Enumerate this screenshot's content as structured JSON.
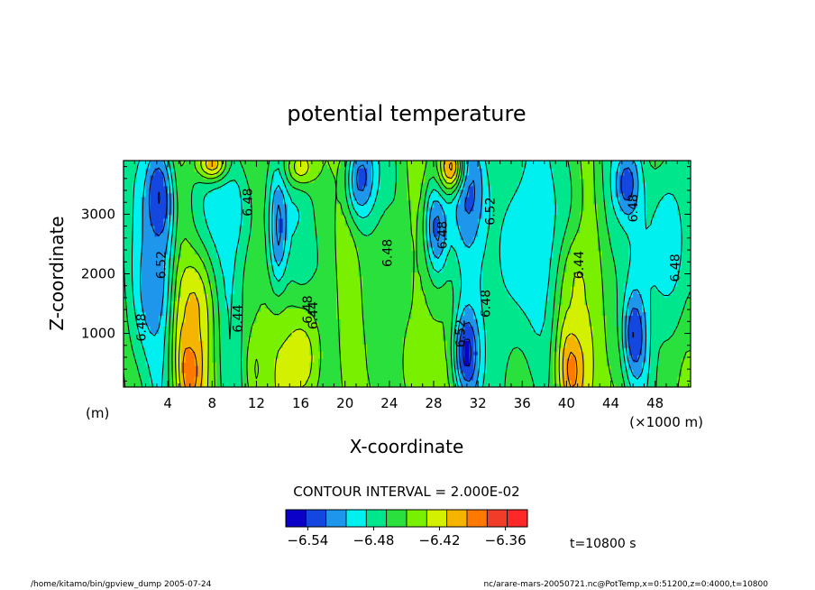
{
  "chart_data": {
    "type": "heatmap",
    "title": "potential temperature",
    "xlabel": "X-coordinate",
    "ylabel": "Z-coordinate",
    "x_unit_left": "(m)",
    "x_unit_right": "(×1000 m)",
    "xlim": [
      0,
      51.2
    ],
    "ylim": [
      100,
      3900
    ],
    "x_ticks": [
      4,
      8,
      12,
      16,
      20,
      24,
      28,
      32,
      36,
      40,
      44,
      48
    ],
    "y_ticks": [
      1000,
      2000,
      3000
    ],
    "contour_interval_text": "CONTOUR INTERVAL = 2.000E-02",
    "colorbar": {
      "range": [
        -6.56,
        -6.34
      ],
      "tick_values": [
        -6.54,
        -6.48,
        -6.42,
        -6.36
      ],
      "tick_labels": [
        "−6.54",
        "−6.48",
        "−6.42",
        "−6.36"
      ],
      "colors": [
        "#0a00c8",
        "#1447e0",
        "#1e96ec",
        "#00f0f0",
        "#00e68c",
        "#2ae03c",
        "#78f000",
        "#d2f000",
        "#f5b400",
        "#ff7800",
        "#f03c28",
        "#ff2828"
      ]
    },
    "contour_labels": [
      {
        "text": "6.52",
        "x": 3.8,
        "z": 2150
      },
      {
        "text": "6.48",
        "x": 2.0,
        "z": 1100
      },
      {
        "text": "6.48",
        "x": 11.6,
        "z": 3200
      },
      {
        "text": "6.44",
        "x": 10.7,
        "z": 1250
      },
      {
        "text": "6.48",
        "x": 17.0,
        "z": 1400
      },
      {
        "text": "6.44",
        "x": 17.5,
        "z": 1300
      },
      {
        "text": "6.48",
        "x": 24.2,
        "z": 2350
      },
      {
        "text": "6.48",
        "x": 29.2,
        "z": 2650
      },
      {
        "text": "6.52",
        "x": 30.8,
        "z": 1000
      },
      {
        "text": "6.48",
        "x": 33.1,
        "z": 1500
      },
      {
        "text": "6.52",
        "x": 33.5,
        "z": 3050
      },
      {
        "text": "6.44",
        "x": 41.5,
        "z": 2150
      },
      {
        "text": "6.48",
        "x": 46.4,
        "z": 3100
      },
      {
        "text": "6.48",
        "x": 50.2,
        "z": 2100
      }
    ],
    "field_features": [
      {
        "x": 3.2,
        "z": 3200,
        "sx": 1.0,
        "sz": 700,
        "value": -6.548
      },
      {
        "x": 2.6,
        "z": 1800,
        "sx": 1.2,
        "sz": 800,
        "value": -6.52
      },
      {
        "x": 9.0,
        "z": 3100,
        "sx": 2.0,
        "sz": 700,
        "value": -6.5
      },
      {
        "x": 14.0,
        "z": 2800,
        "sx": 0.7,
        "sz": 900,
        "value": -6.53
      },
      {
        "x": 21.5,
        "z": 3550,
        "sx": 1.0,
        "sz": 500,
        "value": -6.54
      },
      {
        "x": 28.2,
        "z": 2700,
        "sx": 0.8,
        "sz": 600,
        "value": -6.55
      },
      {
        "x": 31.2,
        "z": 3400,
        "sx": 1.2,
        "sz": 700,
        "value": -6.54
      },
      {
        "x": 31.0,
        "z": 700,
        "sx": 0.8,
        "sz": 500,
        "value": -6.56
      },
      {
        "x": 36.5,
        "z": 2400,
        "sx": 3.2,
        "sz": 1500,
        "value": -6.5
      },
      {
        "x": 46.2,
        "z": 1000,
        "sx": 0.7,
        "sz": 500,
        "value": -6.55
      },
      {
        "x": 45.5,
        "z": 3500,
        "sx": 0.8,
        "sz": 400,
        "value": -6.54
      },
      {
        "x": 49.0,
        "z": 2500,
        "sx": 1.8,
        "sz": 1200,
        "value": -6.5
      },
      {
        "x": 6.0,
        "z": 500,
        "sx": 0.8,
        "sz": 600,
        "value": -6.37
      },
      {
        "x": 6.3,
        "z": 1400,
        "sx": 1.0,
        "sz": 600,
        "value": -6.41
      },
      {
        "x": 16.0,
        "z": 600,
        "sx": 1.5,
        "sz": 700,
        "value": -6.42
      },
      {
        "x": 40.5,
        "z": 500,
        "sx": 1.0,
        "sz": 800,
        "value": -6.38
      },
      {
        "x": 41.0,
        "z": 1800,
        "sx": 1.2,
        "sz": 700,
        "value": -6.43
      },
      {
        "x": 8.0,
        "z": 3850,
        "sx": 1.0,
        "sz": 200,
        "value": -6.4
      },
      {
        "x": 16.0,
        "z": 3800,
        "sx": 1.0,
        "sz": 250,
        "value": -6.42
      },
      {
        "x": 29.5,
        "z": 3800,
        "sx": 0.8,
        "sz": 300,
        "value": -6.39
      },
      {
        "x": 26.0,
        "z": 500,
        "sx": 0.8,
        "sz": 600,
        "value": -6.43
      },
      {
        "x": 12.0,
        "z": 400,
        "sx": 0.7,
        "sz": 500,
        "value": -6.43
      },
      {
        "x": 24.5,
        "z": 1500,
        "sx": 2.5,
        "sz": 1200,
        "value": -6.45
      }
    ]
  },
  "time_text": "t=10800 s",
  "footer_left": "/home/kitamo/bin/gpview_dump   2005-07-24",
  "footer_right": "nc/arare-mars-20050721.nc@PotTemp,x=0:51200,z=0:4000,t=10800"
}
